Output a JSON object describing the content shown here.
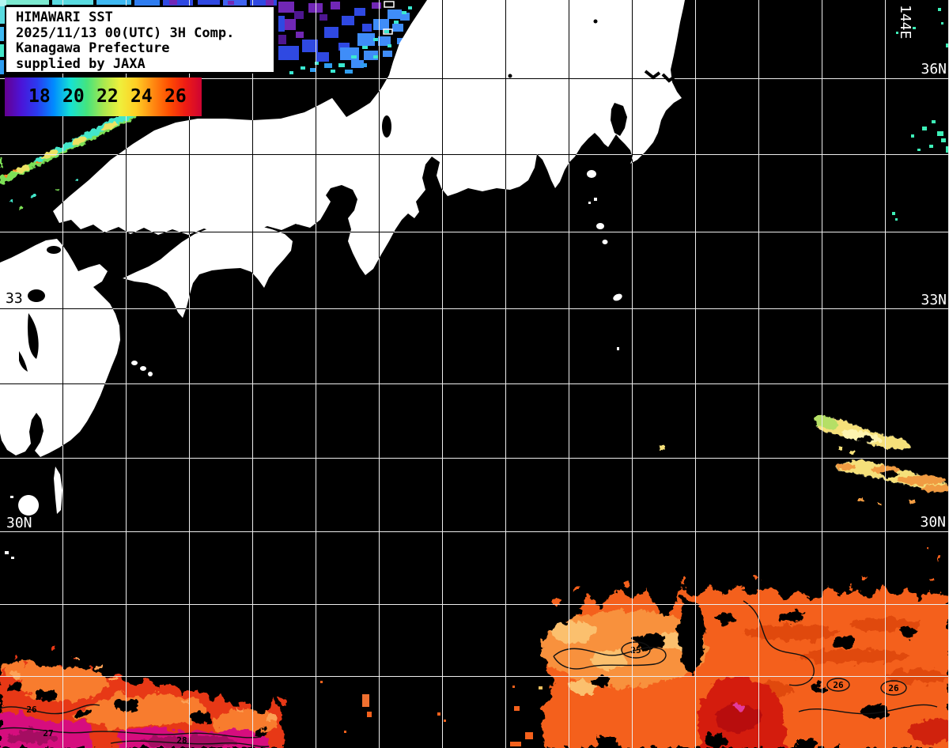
{
  "header": {
    "product": "HIMAWARI SST",
    "datetime": "2025/11/13 00(UTC) 3H Comp.",
    "region": "Kanagawa Prefecture",
    "credit": "supplied by JAXA"
  },
  "colorbar": {
    "ticks": [
      "18",
      "20",
      "22",
      "24",
      "26"
    ],
    "gradient": [
      "#65008f",
      "#4b14d8",
      "#2a3cf0",
      "#008cff",
      "#16e2d4",
      "#44e47e",
      "#a6e850",
      "#eef03c",
      "#ffcf24",
      "#ff8c12",
      "#ff4f02",
      "#ef1c14",
      "#ce0432"
    ]
  },
  "grid_labels": {
    "lon_144e": "144E",
    "lat_36n": "36N",
    "lat_33n": "33N",
    "lat_30n_right": "30N",
    "lat_30n_left": "30N",
    "lat_33_left": "33"
  },
  "contour_labels": {
    "c25": "25",
    "c26r1": "26",
    "c26r2": "26",
    "c26l": "26",
    "c27": "27",
    "c28": "28"
  },
  "colors": {
    "ocean": "#000000",
    "land": "#ffffff",
    "grid": "#ededed",
    "sst_warm_orange": "#f4611c",
    "sst_pale_orange": "#f8913e",
    "sst_hot_red": "#d41d10",
    "sst_magenta": "#d6107e",
    "sst_yellow": "#f5e07a",
    "sst_green": "#7de057",
    "sst_cyan": "#43e6c9",
    "sst_blue": "#2f49e2",
    "sst_bright_blue": "#3f8df8",
    "sst_purple": "#7127b5"
  }
}
